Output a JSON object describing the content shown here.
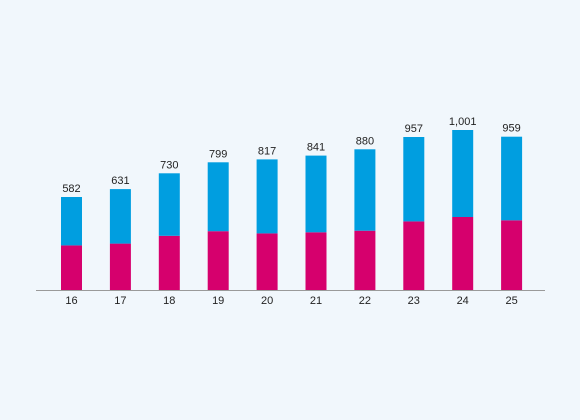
{
  "chart_data": {
    "type": "bar",
    "stacked": true,
    "categories": [
      "16",
      "17",
      "18",
      "19",
      "20",
      "21",
      "22",
      "23",
      "24",
      "25"
    ],
    "totals": [
      582,
      631,
      730,
      799,
      817,
      841,
      880,
      957,
      1001,
      959
    ],
    "total_labels": [
      "582",
      "631",
      "730",
      "799",
      "817",
      "841",
      "880",
      "957",
      "1,001",
      "959"
    ],
    "series": [
      {
        "values": [
          279,
          290,
          339,
          368,
          354,
          361,
          371,
          429,
          457,
          436
        ],
        "color": "#d6006d"
      },
      {
        "values": [
          303,
          341,
          391,
          431,
          463,
          480,
          509,
          528,
          544,
          523
        ],
        "color": "#009ee0"
      }
    ],
    "ylim": [
      0,
      1100
    ],
    "grid": false,
    "legend": "none"
  }
}
